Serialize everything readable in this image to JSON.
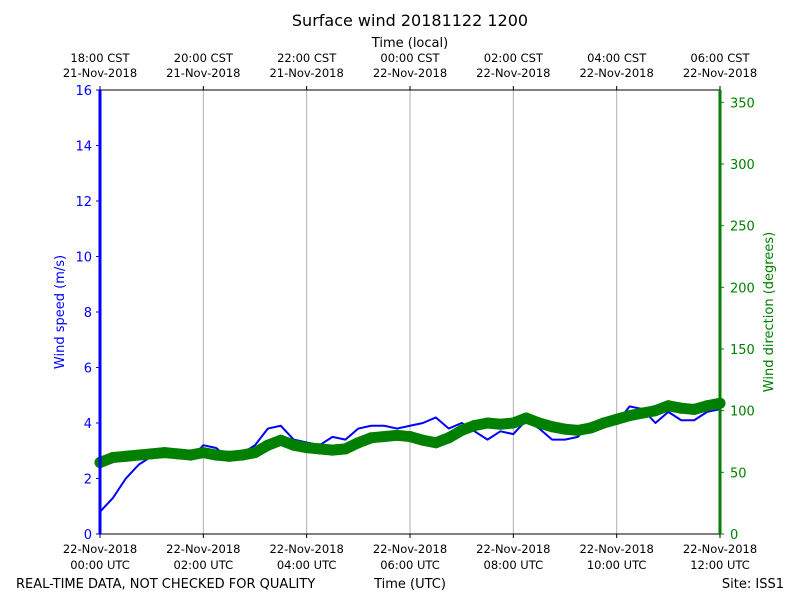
{
  "chart_data": {
    "type": "line",
    "title": "Surface wind 20181122 1200",
    "top_xlabel": "Time (local)",
    "xlabel": "Time (UTC)",
    "ylabel_left": "Wind speed (m/s)",
    "ylabel_right": "Wind direction (degrees)",
    "footer_left": "REAL-TIME DATA, NOT CHECKED FOR QUALITY",
    "footer_right": "Site: ISS1",
    "xlim": [
      "2018-11-22T00:00",
      "2018-11-22T12:00"
    ],
    "ylim_left": [
      0,
      16
    ],
    "ylim_right": [
      0,
      360
    ],
    "yticks_left": [
      0,
      2,
      4,
      6,
      8,
      10,
      12,
      14,
      16
    ],
    "yticks_right": [
      0,
      50,
      100,
      150,
      200,
      250,
      300,
      350
    ],
    "grid": "vertical",
    "colors": {
      "speed": "#0000ff",
      "direction": "#008000",
      "grid": "#b0b0b0"
    },
    "xticks_bottom": [
      {
        "time": "2018-11-22T00:00",
        "line1": "22-Nov-2018",
        "line2": "00:00 UTC"
      },
      {
        "time": "2018-11-22T02:00",
        "line1": "22-Nov-2018",
        "line2": "02:00 UTC"
      },
      {
        "time": "2018-11-22T04:00",
        "line1": "22-Nov-2018",
        "line2": "04:00 UTC"
      },
      {
        "time": "2018-11-22T06:00",
        "line1": "22-Nov-2018",
        "line2": "06:00 UTC"
      },
      {
        "time": "2018-11-22T08:00",
        "line1": "22-Nov-2018",
        "line2": "08:00 UTC"
      },
      {
        "time": "2018-11-22T10:00",
        "line1": "22-Nov-2018",
        "line2": "10:00 UTC"
      },
      {
        "time": "2018-11-22T12:00",
        "line1": "22-Nov-2018",
        "line2": "12:00 UTC"
      }
    ],
    "xticks_top": [
      {
        "time": "2018-11-22T00:00",
        "line1": "18:00 CST",
        "line2": "21-Nov-2018"
      },
      {
        "time": "2018-11-22T02:00",
        "line1": "20:00 CST",
        "line2": "21-Nov-2018"
      },
      {
        "time": "2018-11-22T04:00",
        "line1": "22:00 CST",
        "line2": "21-Nov-2018"
      },
      {
        "time": "2018-11-22T06:00",
        "line1": "00:00 CST",
        "line2": "22-Nov-2018"
      },
      {
        "time": "2018-11-22T08:00",
        "line1": "02:00 CST",
        "line2": "22-Nov-2018"
      },
      {
        "time": "2018-11-22T10:00",
        "line1": "04:00 CST",
        "line2": "22-Nov-2018"
      },
      {
        "time": "2018-11-22T12:00",
        "line1": "06:00 CST",
        "line2": "22-Nov-2018"
      }
    ],
    "x": [
      "00:00",
      "00:15",
      "00:30",
      "00:45",
      "01:00",
      "01:15",
      "01:30",
      "01:45",
      "02:00",
      "02:15",
      "02:30",
      "02:45",
      "03:00",
      "03:15",
      "03:30",
      "03:45",
      "04:00",
      "04:15",
      "04:30",
      "04:45",
      "05:00",
      "05:15",
      "05:30",
      "05:45",
      "06:00",
      "06:15",
      "06:30",
      "06:45",
      "07:00",
      "07:15",
      "07:30",
      "07:45",
      "08:00",
      "08:15",
      "08:30",
      "08:45",
      "09:00",
      "09:15",
      "09:30",
      "09:45",
      "10:00",
      "10:15",
      "10:30",
      "10:45",
      "11:00",
      "11:15",
      "11:30",
      "11:45",
      "12:00"
    ],
    "series": [
      {
        "axis": "left",
        "values": [
          0.8,
          1.3,
          2.0,
          2.5,
          2.8,
          2.9,
          2.9,
          2.7,
          3.2,
          3.1,
          2.7,
          2.9,
          3.2,
          3.8,
          3.9,
          3.4,
          3.3,
          3.2,
          3.5,
          3.4,
          3.8,
          3.9,
          3.9,
          3.8,
          3.9,
          4.0,
          4.2,
          3.8,
          4.0,
          3.7,
          3.4,
          3.7,
          3.6,
          4.1,
          3.8,
          3.4,
          3.4,
          3.5,
          4.0,
          4.1,
          4.0,
          4.6,
          4.5,
          4.0,
          4.4,
          4.1,
          4.1,
          4.4,
          4.5
        ]
      },
      {
        "axis": "right",
        "values": [
          58,
          62,
          63,
          64,
          65,
          66,
          65,
          64,
          66,
          64,
          63,
          64,
          66,
          72,
          76,
          72,
          70,
          69,
          68,
          69,
          74,
          78,
          79,
          80,
          79,
          76,
          74,
          78,
          84,
          88,
          90,
          89,
          90,
          94,
          90,
          87,
          85,
          84,
          86,
          90,
          93,
          96,
          98,
          100,
          104,
          102,
          101,
          104,
          106
        ]
      }
    ]
  }
}
